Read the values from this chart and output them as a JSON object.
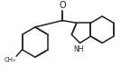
{
  "background_color": "#ffffff",
  "line_color": "#222222",
  "line_width": 1.1,
  "doff": 0.012,
  "figsize": [
    1.34,
    0.86
  ],
  "dpi": 100,
  "font_size_O": 7.0,
  "font_size_NH": 5.5,
  "font_size_CH3": 5.0,
  "xlim": [
    0,
    134
  ],
  "ylim": [
    0,
    86
  ]
}
